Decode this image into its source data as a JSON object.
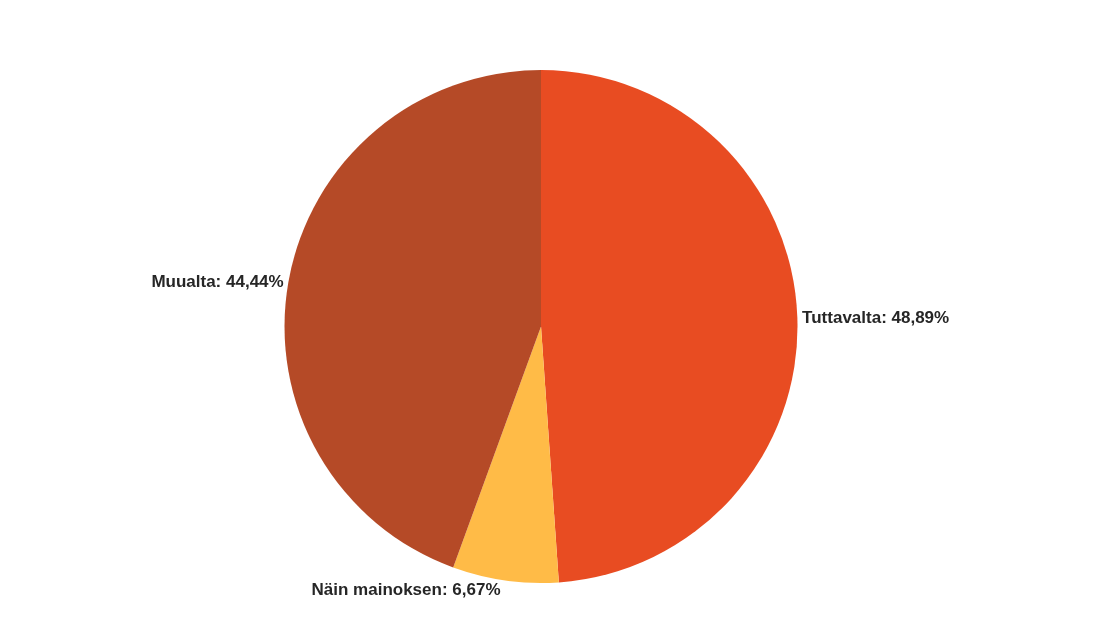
{
  "chart_data": {
    "type": "pie",
    "categories": [
      "Tuttavalta",
      "Näin mainoksen",
      "Muualta"
    ],
    "values": [
      48.89,
      6.67,
      44.44
    ],
    "value_labels": [
      "48,89%",
      "6,67%",
      "44,44%"
    ],
    "colors": [
      "#e84c22",
      "#ffbb47",
      "#b54a27"
    ],
    "legend": false
  }
}
